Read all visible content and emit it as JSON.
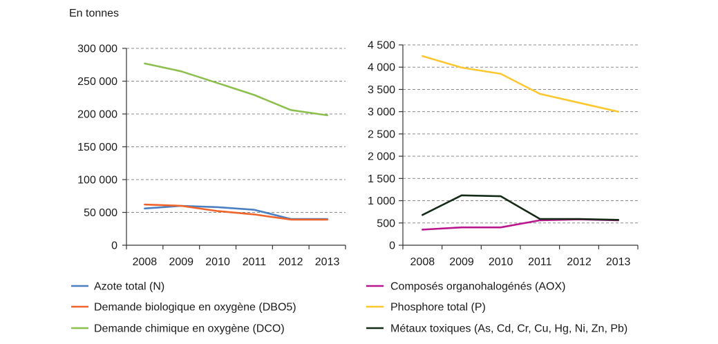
{
  "chart_data": [
    {
      "type": "line",
      "title": "",
      "xlabel": "",
      "ylabel": "En tonnes",
      "categories": [
        "2008",
        "2009",
        "2010",
        "2011",
        "2012",
        "2013"
      ],
      "ylim": [
        0,
        300000
      ],
      "yticks": [
        0,
        50000,
        100000,
        150000,
        200000,
        250000,
        300000
      ],
      "ytick_labels": [
        "0",
        "50 000",
        "100 000",
        "150 000",
        "200 000",
        "250 000",
        "300 000"
      ],
      "grid": true,
      "legend": "bottom",
      "series": [
        {
          "name": "Azote total (N)",
          "color": "#4a7fc1",
          "values": [
            56000,
            60000,
            58000,
            54000,
            40000,
            40000
          ]
        },
        {
          "name": "Demande biologique en oxygène (DBO5)",
          "color": "#f0642a",
          "values": [
            62000,
            60000,
            52000,
            47000,
            39000,
            39000
          ]
        },
        {
          "name": "Demande chimique en oxygène (DCO)",
          "color": "#8dbf4c",
          "values": [
            277000,
            265000,
            247000,
            229000,
            206000,
            198000
          ]
        }
      ]
    },
    {
      "type": "line",
      "title": "",
      "xlabel": "",
      "ylabel": "",
      "categories": [
        "2008",
        "2009",
        "2010",
        "2011",
        "2012",
        "2013"
      ],
      "ylim": [
        0,
        4500
      ],
      "yticks": [
        0,
        500,
        1000,
        1500,
        2000,
        2500,
        3000,
        3500,
        4000,
        4500
      ],
      "ytick_labels": [
        "0",
        "500",
        "1 000",
        "1 500",
        "2 000",
        "2 500",
        "3 000",
        "3 500",
        "4 000",
        "4 500"
      ],
      "grid": true,
      "legend": "bottom",
      "series": [
        {
          "name": "Composés organohalogénés (AOX)",
          "color": "#b8178d",
          "values": [
            350,
            400,
            400,
            560,
            580,
            560
          ]
        },
        {
          "name": "Phosphore total (P)",
          "color": "#fdc82f",
          "values": [
            4250,
            3990,
            3850,
            3400,
            3200,
            3000
          ]
        },
        {
          "name": "Métaux toxiques (As, Cd, Cr, Cu, Hg, Ni, Zn, Pb)",
          "color": "#142a16",
          "values": [
            680,
            1120,
            1100,
            590,
            590,
            570
          ]
        }
      ]
    }
  ]
}
